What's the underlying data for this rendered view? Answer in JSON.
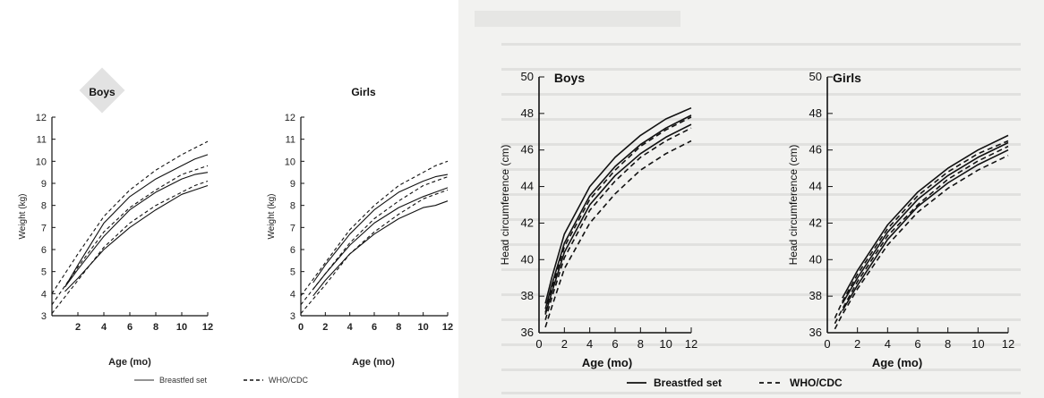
{
  "chart_data": [
    {
      "id": "c1",
      "type": "line",
      "title": "Boys",
      "xlabel": "Age (mo)",
      "ylabel": "Weight (kg)",
      "xlim": [
        0,
        12
      ],
      "ylim": [
        3,
        12
      ],
      "xticks": [
        2,
        4,
        6,
        8,
        10,
        12
      ],
      "yticks": [
        3,
        4,
        5,
        6,
        7,
        8,
        9,
        10,
        11,
        12
      ],
      "series": [
        {
          "style": "solid",
          "x": [
            1,
            2,
            4,
            6,
            8,
            10,
            11,
            12
          ],
          "y": [
            4.3,
            5.3,
            7.2,
            8.4,
            9.2,
            9.8,
            10.1,
            10.3
          ]
        },
        {
          "style": "solid",
          "x": [
            1,
            2,
            4,
            6,
            8,
            10,
            11,
            12
          ],
          "y": [
            4.3,
            5.1,
            6.6,
            7.8,
            8.6,
            9.2,
            9.4,
            9.5
          ]
        },
        {
          "style": "solid",
          "x": [
            1,
            2,
            4,
            6,
            8,
            10,
            11,
            12
          ],
          "y": [
            4.1,
            4.7,
            6.0,
            7.0,
            7.8,
            8.5,
            8.7,
            8.9
          ]
        },
        {
          "style": "dashed",
          "x": [
            0,
            2,
            4,
            6,
            8,
            10,
            11,
            12
          ],
          "y": [
            4.0,
            5.8,
            7.5,
            8.7,
            9.6,
            10.3,
            10.6,
            10.9
          ]
        },
        {
          "style": "dashed",
          "x": [
            0,
            2,
            4,
            6,
            8,
            10,
            11,
            12
          ],
          "y": [
            3.5,
            5.2,
            6.8,
            7.9,
            8.7,
            9.4,
            9.6,
            9.8
          ]
        },
        {
          "style": "dashed",
          "x": [
            0,
            2,
            4,
            6,
            8,
            10,
            11,
            12
          ],
          "y": [
            3.1,
            4.6,
            6.1,
            7.2,
            8.0,
            8.6,
            8.9,
            9.1
          ]
        }
      ]
    },
    {
      "id": "c2",
      "type": "line",
      "title": "Girls",
      "xlabel": "Age (mo)",
      "ylabel": "Weight (kg)",
      "xlim": [
        0,
        12
      ],
      "ylim": [
        3,
        12
      ],
      "xticks": [
        0,
        2,
        4,
        6,
        8,
        10,
        12
      ],
      "yticks": [
        3,
        4,
        5,
        6,
        7,
        8,
        9,
        10,
        11,
        12
      ],
      "series": [
        {
          "style": "solid",
          "x": [
            1,
            2,
            4,
            6,
            8,
            10,
            11,
            12
          ],
          "y": [
            4.5,
            5.3,
            6.7,
            7.8,
            8.6,
            9.1,
            9.3,
            9.4
          ]
        },
        {
          "style": "solid",
          "x": [
            1,
            2,
            4,
            6,
            8,
            10,
            11,
            12
          ],
          "y": [
            4.2,
            4.9,
            6.2,
            7.2,
            7.9,
            8.4,
            8.6,
            8.8
          ]
        },
        {
          "style": "solid",
          "x": [
            1,
            2,
            4,
            6,
            8,
            10,
            11,
            12
          ],
          "y": [
            3.9,
            4.6,
            5.8,
            6.7,
            7.4,
            7.9,
            8.0,
            8.2
          ]
        },
        {
          "style": "dashed",
          "x": [
            0,
            2,
            4,
            6,
            8,
            10,
            11,
            12
          ],
          "y": [
            3.9,
            5.4,
            6.9,
            8.0,
            8.9,
            9.5,
            9.8,
            10.0
          ]
        },
        {
          "style": "dashed",
          "x": [
            0,
            2,
            4,
            6,
            8,
            10,
            11,
            12
          ],
          "y": [
            3.5,
            4.9,
            6.3,
            7.4,
            8.2,
            8.9,
            9.1,
            9.3
          ]
        },
        {
          "style": "dashed",
          "x": [
            0,
            2,
            4,
            6,
            8,
            10,
            11,
            12
          ],
          "y": [
            3.1,
            4.4,
            5.8,
            6.8,
            7.6,
            8.3,
            8.5,
            8.7
          ]
        }
      ]
    },
    {
      "id": "c3",
      "type": "line",
      "title": "Boys",
      "xlabel": "Age (mo)",
      "ylabel": "Head circumference (cm)",
      "xlim": [
        0,
        12
      ],
      "ylim": [
        36,
        50
      ],
      "xticks": [
        0,
        2,
        4,
        6,
        8,
        10,
        12
      ],
      "yticks": [
        36,
        38,
        40,
        42,
        44,
        46,
        48,
        50
      ],
      "series": [
        {
          "style": "solid",
          "x": [
            0.5,
            1,
            2,
            4,
            6,
            8,
            10,
            12
          ],
          "y": [
            37.0,
            38.2,
            40.4,
            43.0,
            44.6,
            45.8,
            46.7,
            47.4
          ]
        },
        {
          "style": "solid",
          "x": [
            0.5,
            1,
            2,
            4,
            6,
            8,
            10,
            12
          ],
          "y": [
            37.3,
            38.6,
            40.9,
            43.5,
            45.1,
            46.3,
            47.2,
            47.9
          ]
        },
        {
          "style": "solid",
          "x": [
            0.5,
            1,
            2,
            4,
            6,
            8,
            10,
            12
          ],
          "y": [
            37.6,
            39.0,
            41.4,
            44.0,
            45.6,
            46.8,
            47.7,
            48.3
          ]
        },
        {
          "style": "dashed",
          "x": [
            0.5,
            1,
            2,
            4,
            6,
            8,
            10,
            12
          ],
          "y": [
            36.3,
            37.4,
            39.5,
            42.0,
            43.6,
            44.9,
            45.8,
            46.5
          ]
        },
        {
          "style": "dashed",
          "x": [
            0.5,
            1,
            2,
            4,
            6,
            8,
            10,
            12
          ],
          "y": [
            36.7,
            37.9,
            40.1,
            42.7,
            44.3,
            45.6,
            46.5,
            47.2
          ]
        },
        {
          "style": "dashed",
          "x": [
            0.5,
            1,
            2,
            4,
            6,
            8,
            10,
            12
          ],
          "y": [
            37.1,
            38.4,
            40.7,
            43.3,
            44.9,
            46.2,
            47.1,
            47.8
          ]
        }
      ]
    },
    {
      "id": "c4",
      "type": "line",
      "title": "Girls",
      "xlabel": "Age (mo)",
      "ylabel": "Head circumference (cm)",
      "xlim": [
        0,
        12
      ],
      "ylim": [
        36,
        50
      ],
      "xticks": [
        0,
        2,
        4,
        6,
        8,
        10,
        12
      ],
      "yticks": [
        36,
        38,
        40,
        42,
        44,
        46,
        48,
        50
      ],
      "series": [
        {
          "style": "solid",
          "x": [
            1,
            2,
            4,
            6,
            8,
            10,
            12
          ],
          "y": [
            37.6,
            39.0,
            41.5,
            43.3,
            44.6,
            45.6,
            46.4
          ]
        },
        {
          "style": "solid",
          "x": [
            1,
            2,
            4,
            6,
            8,
            10,
            12
          ],
          "y": [
            37.9,
            39.4,
            41.9,
            43.7,
            45.0,
            46.0,
            46.8
          ]
        },
        {
          "style": "solid",
          "x": [
            1,
            2,
            4,
            6,
            8,
            10,
            12
          ],
          "y": [
            37.2,
            38.6,
            41.1,
            42.9,
            44.2,
            45.2,
            46.0
          ]
        },
        {
          "style": "dashed",
          "x": [
            0.5,
            1,
            2,
            4,
            6,
            8,
            10,
            12
          ],
          "y": [
            36.2,
            37.0,
            38.4,
            40.8,
            42.6,
            43.9,
            44.9,
            45.7
          ]
        },
        {
          "style": "dashed",
          "x": [
            0.5,
            1,
            2,
            4,
            6,
            8,
            10,
            12
          ],
          "y": [
            36.5,
            37.3,
            38.8,
            41.3,
            43.0,
            44.4,
            45.4,
            46.2
          ]
        },
        {
          "style": "dashed",
          "x": [
            0.5,
            1,
            2,
            4,
            6,
            8,
            10,
            12
          ],
          "y": [
            36.8,
            37.7,
            39.2,
            41.7,
            43.5,
            44.8,
            45.8,
            46.5
          ]
        }
      ]
    }
  ],
  "legend_left": {
    "breastfed": "Breastfed set",
    "who": "WHO/CDC"
  },
  "legend_right": {
    "breastfed": "Breastfed set",
    "who": "WHO/CDC"
  }
}
